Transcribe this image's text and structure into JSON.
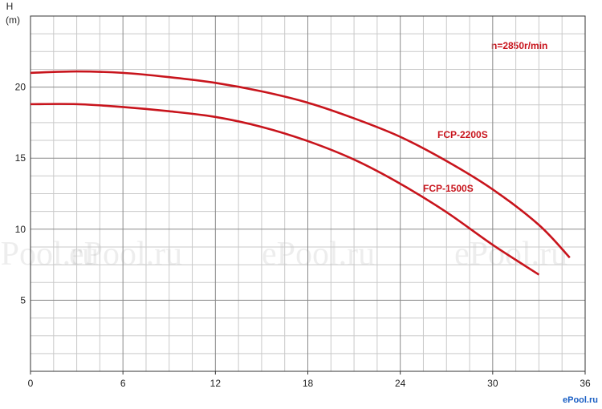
{
  "chart_data": {
    "type": "line",
    "y_label": "H",
    "y_unit": "(m)",
    "annotation": "n=2850r/min",
    "watermark": "ePool.ru",
    "logo": "ePool.ru",
    "xlim": [
      0,
      36
    ],
    "xticks": [
      0,
      6,
      12,
      18,
      24,
      30,
      36
    ],
    "ylim": [
      0,
      25
    ],
    "yticks": [
      5,
      10,
      15,
      20
    ],
    "grid": true,
    "series": [
      {
        "name": "FCP-2200S",
        "color": "#c8141c",
        "x": [
          0,
          3,
          6,
          9,
          12,
          15,
          18,
          21,
          24,
          27,
          30,
          33,
          35
        ],
        "values": [
          21.0,
          21.1,
          21.0,
          20.7,
          20.3,
          19.7,
          18.9,
          17.8,
          16.5,
          14.8,
          12.8,
          10.3,
          8.0
        ]
      },
      {
        "name": "FCP-1500S",
        "color": "#c8141c",
        "x": [
          0,
          3,
          6,
          9,
          12,
          15,
          18,
          21,
          24,
          27,
          30,
          33
        ],
        "values": [
          18.8,
          18.8,
          18.6,
          18.3,
          17.9,
          17.2,
          16.2,
          14.9,
          13.2,
          11.2,
          8.9,
          6.8
        ]
      }
    ]
  }
}
